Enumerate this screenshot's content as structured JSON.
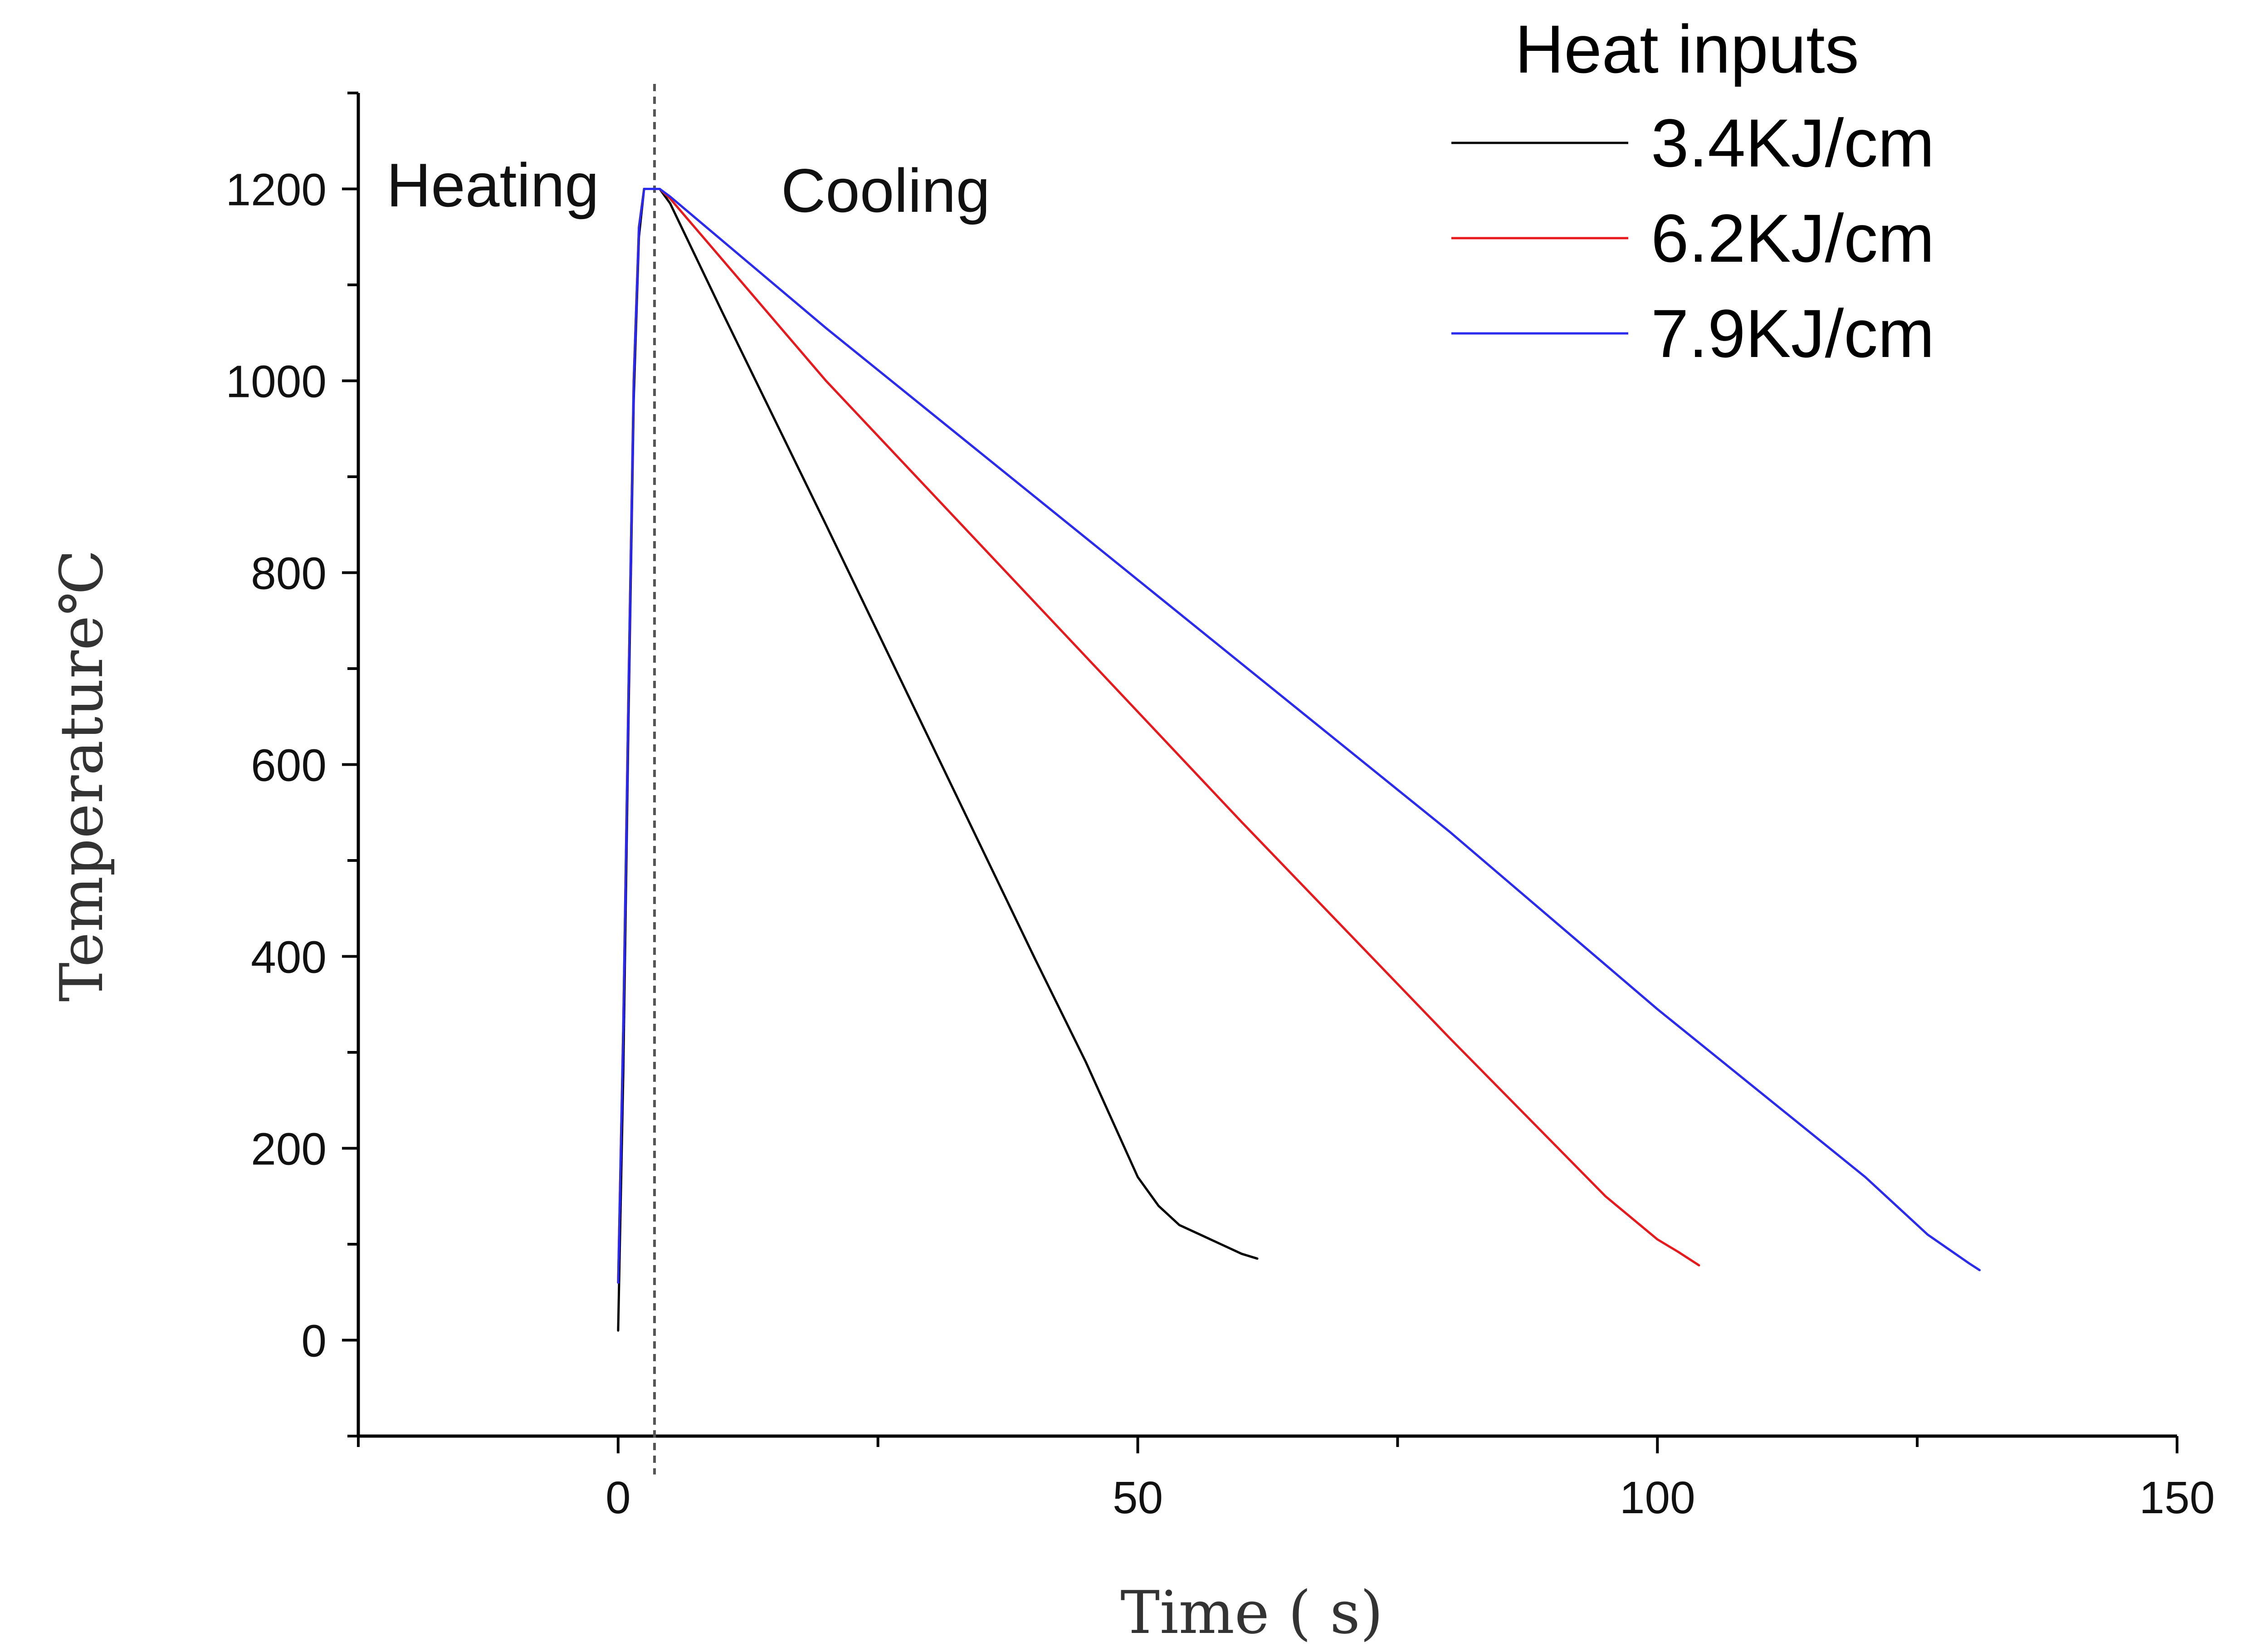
{
  "chart_data": {
    "type": "line",
    "xlabel": "Time ( s)",
    "ylabel": "Temperature℃",
    "xlim": [
      -25,
      150
    ],
    "ylim": [
      -100,
      1300
    ],
    "x_ticks": [
      0,
      50,
      100,
      150
    ],
    "x_tick_labels": [
      "0",
      "50",
      "100",
      "150"
    ],
    "y_ticks": [
      0,
      200,
      400,
      600,
      800,
      1000,
      1200
    ],
    "y_tick_labels": [
      "0",
      "200",
      "400",
      "600",
      "800",
      "1000",
      "1200"
    ],
    "divider_x": 3.5,
    "annotations": {
      "heating": "Heating",
      "cooling": "Cooling"
    },
    "legend": {
      "title": "Heat inputs",
      "position": "top-right"
    },
    "series": [
      {
        "name": "3.4KJ/cm",
        "color": "#000000",
        "x": [
          0,
          0.5,
          1,
          1.5,
          2,
          2.5,
          3,
          4,
          5,
          10,
          20,
          30,
          40,
          45,
          50,
          52,
          54,
          56,
          58,
          60,
          61.5
        ],
        "y": [
          10,
          280,
          650,
          980,
          1150,
          1200,
          1200,
          1200,
          1185,
          1072,
          850,
          625,
          400,
          290,
          170,
          140,
          120,
          110,
          100,
          90,
          85
        ]
      },
      {
        "name": "6.2KJ/cm",
        "color": "#e8191c",
        "x": [
          0,
          0.5,
          1,
          1.5,
          2,
          2.5,
          3,
          4,
          5,
          20,
          40,
          60,
          80,
          90,
          95,
          100,
          102,
          104
        ],
        "y": [
          60,
          330,
          680,
          1000,
          1160,
          1200,
          1200,
          1200,
          1190,
          1000,
          770,
          540,
          315,
          205,
          150,
          105,
          92,
          78
        ]
      },
      {
        "name": "7.9KJ/cm",
        "color": "#2b2bf0",
        "x": [
          0,
          0.5,
          1,
          1.5,
          2,
          2.5,
          3,
          4,
          5,
          20,
          40,
          60,
          80,
          100,
          120,
          126,
          130,
          131
        ],
        "y": [
          60,
          330,
          680,
          1000,
          1160,
          1200,
          1200,
          1200,
          1192,
          1055,
          880,
          705,
          530,
          345,
          170,
          110,
          80,
          73
        ]
      }
    ]
  }
}
